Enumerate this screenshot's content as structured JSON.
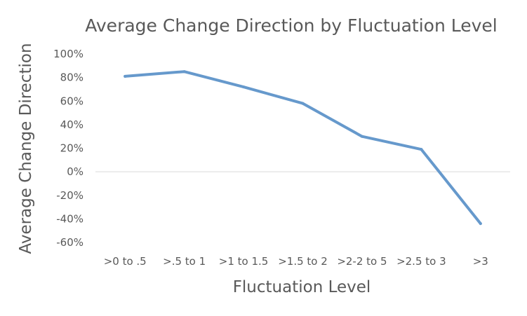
{
  "chart_data": {
    "type": "line",
    "title": "Average Change Direction by Fluctuation Level",
    "xlabel": "Fluctuation Level",
    "ylabel": "Average Change Direction",
    "categories": [
      ">0 to .5",
      ">.5 to 1",
      ">1 to 1.5",
      ">1.5 to 2",
      ">2-2 to 5",
      ">2.5 to 3",
      ">3"
    ],
    "yticks": [
      "100%",
      "80%",
      "60%",
      "40%",
      "20%",
      "0%",
      "-20%",
      "-40%",
      "-60%"
    ],
    "ylim": [
      -60,
      100
    ],
    "y_unit": "%",
    "series": [
      {
        "values": [
          81,
          85,
          72,
          58,
          30,
          19,
          -44
        ],
        "color": "#6699cc"
      }
    ],
    "grid": "zero line only",
    "legend": "none"
  },
  "colors": {
    "text": "#595959",
    "zero_line": "#d9d9d9",
    "series_line": "#6699cc"
  }
}
